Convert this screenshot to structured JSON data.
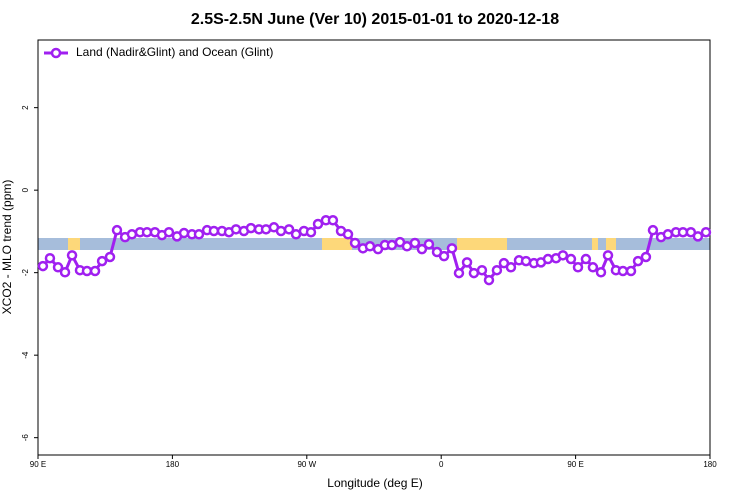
{
  "chart_data": {
    "type": "line",
    "title": "2.5S-2.5N June (Ver 10)   2015-01-01 to 2020-12-18",
    "x_label": "Longitude (deg E)",
    "y_label": "XCO2 - MLO trend (ppm)",
    "xlim": [
      90,
      540
    ],
    "ylim": [
      -6.42,
      3.64
    ],
    "xticks": [
      {
        "value": 90,
        "label": "90 E"
      },
      180,
      {
        "value": 270,
        "label": "90 W"
      },
      {
        "value": 360,
        "label": "0"
      },
      {
        "value": 450,
        "label": "90 E"
      },
      {
        "value": 540,
        "label": "180"
      }
    ],
    "yticks": [
      2,
      0,
      -2,
      -4,
      -6
    ],
    "legend_position": "top-left",
    "x": [
      93.3,
      98.0,
      103.4,
      108.1,
      112.8,
      118.1,
      122.8,
      128.2,
      132.9,
      138.2,
      142.9,
      148.3,
      152.9,
      158.3,
      163.0,
      168.3,
      173.0,
      177.7,
      183.1,
      187.8,
      193.1,
      197.8,
      203.2,
      207.8,
      213.2,
      217.9,
      222.6,
      227.9,
      232.6,
      238.0,
      242.7,
      248.0,
      252.7,
      258.1,
      262.8,
      268.1,
      272.8,
      277.5,
      282.8,
      287.5,
      292.9,
      297.6,
      302.3,
      307.6,
      312.3,
      317.7,
      322.3,
      327.0,
      332.4,
      337.1,
      342.4,
      347.1,
      351.8,
      357.2,
      361.9,
      367.2,
      371.9,
      377.3,
      381.9,
      387.3,
      392.0,
      397.3,
      402.0,
      406.7,
      412.1,
      416.8,
      422.1,
      426.8,
      431.5,
      436.9,
      441.5,
      446.9,
      451.6,
      456.9,
      461.6,
      467.0,
      471.7,
      477.0,
      481.7,
      487.1,
      491.8,
      497.1,
      501.8,
      507.2,
      511.8,
      517.2,
      521.9,
      527.2,
      531.9,
      537.3
    ],
    "series": [
      {
        "name": "Land (Nadir&Glint) and Ocean (Glint)",
        "color": "#a020f0",
        "values": [
          -1.84,
          -1.65,
          -1.87,
          -1.99,
          -1.58,
          -1.94,
          -1.96,
          -1.96,
          -1.72,
          -1.62,
          -0.97,
          -1.14,
          -1.07,
          -1.02,
          -1.02,
          -1.02,
          -1.09,
          -1.02,
          -1.12,
          -1.04,
          -1.07,
          -1.07,
          -0.97,
          -0.99,
          -0.99,
          -1.02,
          -0.95,
          -0.99,
          -0.92,
          -0.95,
          -0.95,
          -0.9,
          -0.99,
          -0.95,
          -1.07,
          -0.99,
          -1.02,
          -0.82,
          -0.73,
          -0.73,
          -0.99,
          -1.07,
          -1.28,
          -1.41,
          -1.36,
          -1.43,
          -1.33,
          -1.33,
          -1.26,
          -1.36,
          -1.28,
          -1.43,
          -1.31,
          -1.5,
          -1.6,
          -1.41,
          -2.01,
          -1.75,
          -2.01,
          -1.94,
          -2.18,
          -1.94,
          -1.77,
          -1.87,
          -1.7,
          -1.72,
          -1.77,
          -1.75,
          -1.67,
          -1.65,
          -1.58,
          -1.67,
          -1.87,
          -1.67,
          -1.87,
          -1.99,
          -1.58,
          -1.94,
          -1.96,
          -1.96,
          -1.72,
          -1.62,
          -0.97,
          -1.14,
          -1.07,
          -1.02,
          -1.02,
          -1.02,
          -1.12,
          -1.02
        ]
      }
    ]
  }
}
